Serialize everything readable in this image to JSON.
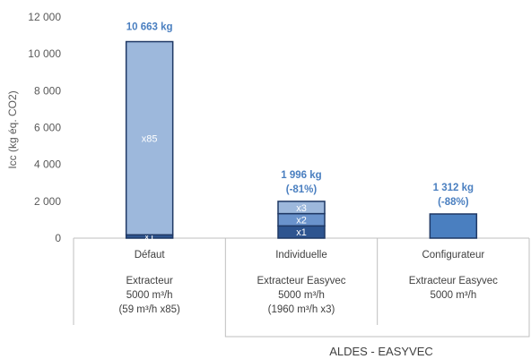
{
  "chart_data": {
    "type": "bar",
    "ylabel": "Icc (kg éq. CO2)",
    "ylim": [
      0,
      12000
    ],
    "yticks": [
      0,
      2000,
      4000,
      6000,
      8000,
      10000,
      12000
    ],
    "ytick_labels": [
      "0",
      "2 000",
      "4 000",
      "6 000",
      "8 000",
      "10 000",
      "12 000"
    ],
    "grid": false,
    "categories": [
      "Défaut",
      "Individuelle",
      "Configurateur"
    ],
    "bars": [
      {
        "category": "Défaut",
        "total": 10663,
        "total_label": "10 663 kg",
        "change_label": "",
        "description": [
          "Extracteur",
          "5000 m³/h",
          "(59 m³/h x85)"
        ],
        "segments": [
          {
            "label": "x1",
            "value": 180,
            "color": "#2e5590"
          },
          {
            "label": "x85",
            "value": 10483,
            "color": "#9db8dc"
          }
        ]
      },
      {
        "category": "Individuelle",
        "total": 1996,
        "total_label": "1 996 kg",
        "change_label": "(-81%)",
        "description": [
          "Extracteur Easyvec",
          "5000 m³/h",
          "(1960 m³/h x3)"
        ],
        "segments": [
          {
            "label": "x1",
            "value": 665,
            "color": "#2e5590"
          },
          {
            "label": "x2",
            "value": 665,
            "color": "#6a93cc"
          },
          {
            "label": "x3",
            "value": 666,
            "color": "#9db8dc"
          }
        ]
      },
      {
        "category": "Configurateur",
        "total": 1312,
        "total_label": "1 312 kg",
        "change_label": "(-88%)",
        "description": [
          "Extracteur Easyvec",
          "5000 m³/h"
        ],
        "segments": [
          {
            "label": "",
            "value": 1312,
            "color": "#4a7fc0"
          }
        ]
      }
    ],
    "group_label": "ALDES - EASYVEC",
    "colors": {
      "total_label": "#4a7fc0",
      "bar_border": "#1f3864",
      "axis": "#bfbfbf"
    }
  }
}
